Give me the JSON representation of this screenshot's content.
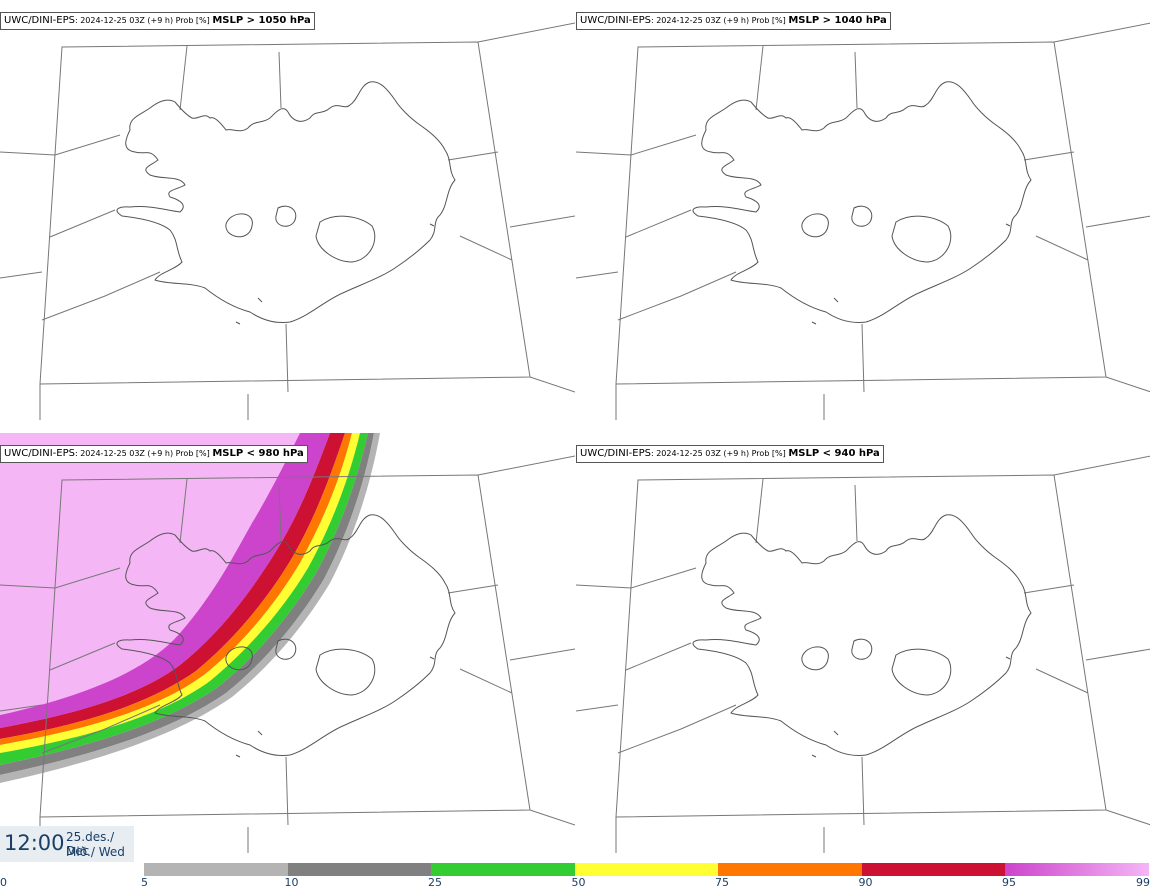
{
  "panels": [
    {
      "model": "UWC/DINI-EPS",
      "meta": ": 2024-12-25 03Z (+9 h) Prob [%] ",
      "threshold": "MSLP > 1050 hPa"
    },
    {
      "model": "UWC/DINI-EPS",
      "meta": ": 2024-12-25 03Z (+9 h) Prob [%] ",
      "threshold": "MSLP > 1040 hPa"
    },
    {
      "model": "UWC/DINI-EPS",
      "meta": ": 2024-12-25 03Z (+9 h) Prob [%] ",
      "threshold": "MSLP < 980 hPa"
    },
    {
      "model": "UWC/DINI-EPS",
      "meta": ": 2024-12-25 03Z (+9 h) Prob [%] ",
      "threshold": "MSLP < 940 hPa"
    }
  ],
  "time": {
    "clock": "12:00",
    "date_line1": "25.des./ Dec",
    "date_line2": "Mið./ Wed"
  },
  "colorbar": {
    "bounds": [
      0,
      5,
      10,
      25,
      50,
      75,
      90,
      95,
      99
    ],
    "labels": [
      "0",
      "5",
      "10",
      "25",
      "50",
      "75",
      "90",
      "95",
      "99"
    ],
    "colors": [
      "#ffffff",
      "#b4b4b4",
      "#808080",
      "#33cc33",
      "#ffff33",
      "#ff7700",
      "#cc1133",
      "#cc44cc",
      "#f5b6f5"
    ]
  }
}
